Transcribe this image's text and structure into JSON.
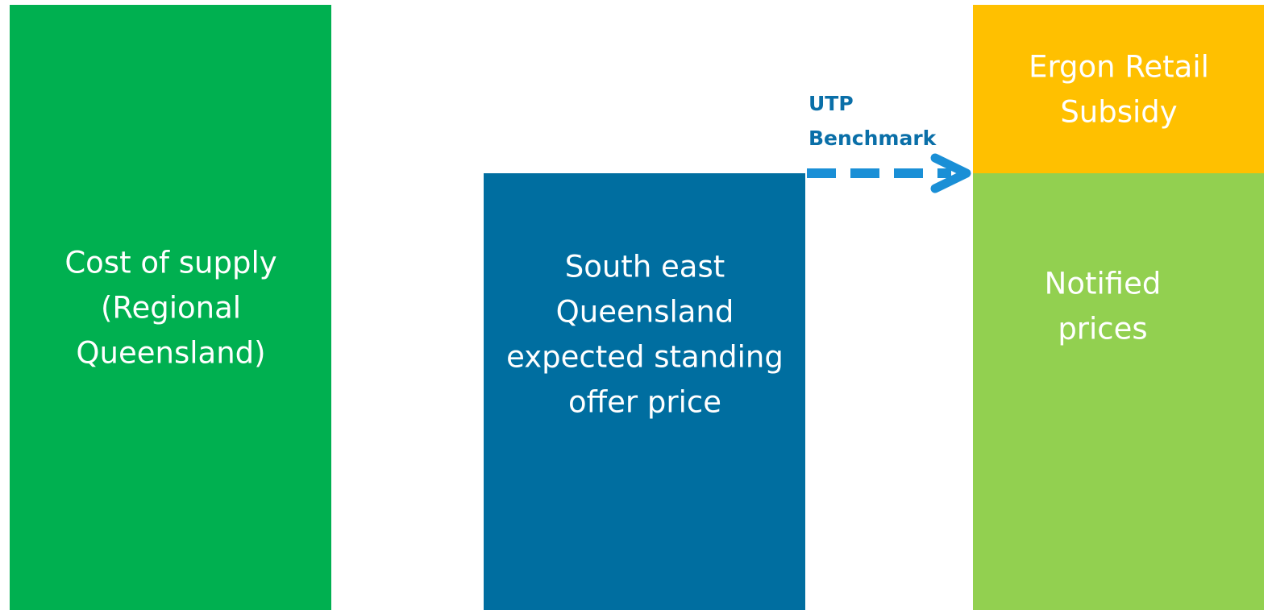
{
  "blocks": [
    {
      "lines": [
        "Cost of supply",
        "(Regional",
        "Queensland)"
      ]
    },
    {
      "lines": [
        "South east",
        "Queensland",
        "expected standing",
        "offer price"
      ]
    },
    {
      "lines": [
        "Ergon Retail",
        "Subsidy"
      ]
    },
    {
      "lines": [
        "Notified",
        "prices"
      ]
    }
  ],
  "arrow": {
    "lines": [
      "UTP",
      "Benchmark"
    ]
  }
}
